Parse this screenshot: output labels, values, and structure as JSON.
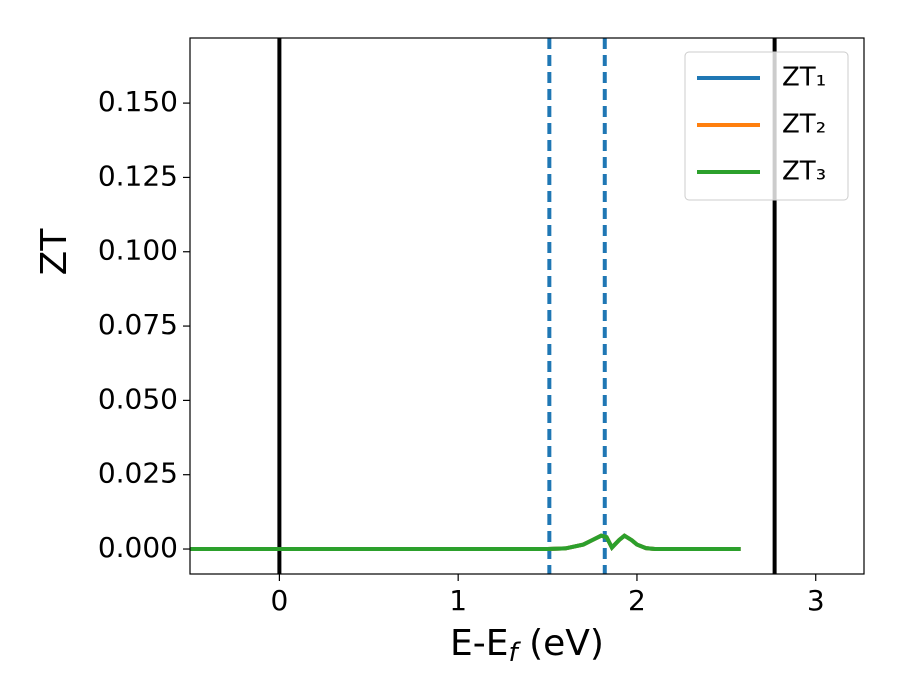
{
  "chart_data": {
    "type": "line",
    "xlabel": {
      "main": "E-E",
      "sub": "f",
      "rest": " (eV)"
    },
    "ylabel": "ZT",
    "x": [
      -0.5,
      1.5,
      1.6,
      1.7,
      1.75,
      1.8,
      1.83,
      1.86,
      1.9,
      1.93,
      1.97,
      2.0,
      2.05,
      2.1,
      2.58
    ],
    "series": [
      {
        "name": "ZT₁",
        "color": "#1f77b4",
        "values": [
          0,
          0,
          0.0002,
          0.0015,
          0.003,
          0.0045,
          0.004,
          0.0005,
          0.003,
          0.0045,
          0.003,
          0.0015,
          0.0003,
          0,
          0
        ]
      },
      {
        "name": "ZT₂",
        "color": "#ff7f0e",
        "values": [
          0,
          0,
          0.0002,
          0.0015,
          0.003,
          0.0045,
          0.004,
          0.0005,
          0.003,
          0.0045,
          0.003,
          0.0015,
          0.0003,
          0,
          0
        ]
      },
      {
        "name": "ZT₃",
        "color": "#2ca02c",
        "values": [
          0,
          0,
          0.0002,
          0.0015,
          0.003,
          0.0045,
          0.004,
          0.0005,
          0.003,
          0.0045,
          0.003,
          0.0015,
          0.0003,
          0,
          0
        ]
      }
    ],
    "vlines": [
      {
        "x": 0,
        "color": "#000000",
        "dashed": false
      },
      {
        "x": 2.77,
        "color": "#000000",
        "dashed": false
      },
      {
        "x": 1.51,
        "color": "#1f77b4",
        "dashed": true
      },
      {
        "x": 1.82,
        "color": "#1f77b4",
        "dashed": true
      }
    ],
    "xlim": [
      -0.5,
      3.27
    ],
    "ylim": [
      -0.0084,
      0.1719
    ],
    "xticks": [
      0,
      1,
      2,
      3
    ],
    "yticks": [
      {
        "value": 0,
        "label": "0.000"
      },
      {
        "value": 0.025,
        "label": "0.025"
      },
      {
        "value": 0.05,
        "label": "0.050"
      },
      {
        "value": 0.075,
        "label": "0.075"
      },
      {
        "value": 0.1,
        "label": "0.100"
      },
      {
        "value": 0.125,
        "label": "0.125"
      },
      {
        "value": 0.15,
        "label": "0.150"
      }
    ],
    "legend": "upper right"
  }
}
